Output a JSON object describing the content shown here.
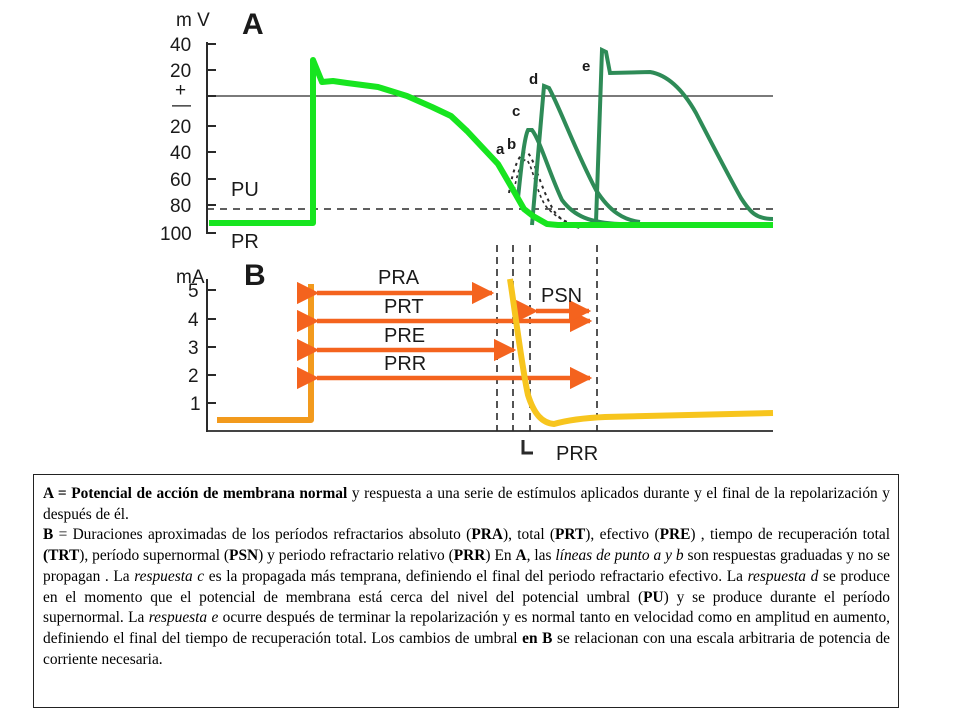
{
  "colors": {
    "green": "#17e51f",
    "dark_green": "#2e8b57",
    "orange_arrow": "#f4631e",
    "orange_stim": "#f29a1d",
    "yellow": "#f7c51e",
    "ink": "#2a2a2a"
  },
  "chart_data": [
    {
      "type": "line",
      "panel": "A",
      "ylabel": "m V",
      "y_ticks": [
        "40",
        "20",
        "+",
        "—",
        "20",
        "40",
        "60",
        "80",
        "100"
      ],
      "labels": [
        "PU",
        "PR"
      ],
      "curve_labels": [
        "a",
        "b",
        "c",
        "d",
        "e"
      ]
    },
    {
      "type": "line",
      "panel": "B",
      "ylabel": "mA",
      "y_ticks": [
        "5",
        "4",
        "3",
        "2",
        "1"
      ],
      "intervals": [
        "PRA",
        "PRT",
        "PRE",
        "PRR",
        "PSN"
      ],
      "bottom_label": "PRR"
    }
  ],
  "caption": {
    "p1": {
      "bold": "A = Potencial de acción de membrana normal",
      "text": " y respuesta a una serie de estímulos aplicados durante y el final de la repolarización y después de él."
    },
    "p2": [
      {
        "t": "B",
        "s": "b"
      },
      {
        "t": "  = Duraciones aproximadas de los períodos refractarios absoluto (",
        "s": ""
      },
      {
        "t": "PRA",
        "s": "b"
      },
      {
        "t": "),  total (",
        "s": ""
      },
      {
        "t": "PRT",
        "s": "b"
      },
      {
        "t": "),  efectivo (",
        "s": ""
      },
      {
        "t": "PRE",
        "s": "b"
      },
      {
        "t": ") ,  tiempo de recuperación total ",
        "s": ""
      },
      {
        "t": "(TRT",
        "s": "b"
      },
      {
        "t": "), período supernormal (",
        "s": ""
      },
      {
        "t": "PSN",
        "s": "b"
      },
      {
        "t": ") y periodo refractario relativo (",
        "s": ""
      },
      {
        "t": "PRR",
        "s": "b"
      },
      {
        "t": ") En ",
        "s": ""
      },
      {
        "t": "A",
        "s": "b"
      },
      {
        "t": ", las ",
        "s": ""
      },
      {
        "t": "líneas de punto a y b",
        "s": "i"
      },
      {
        "t": " son respuestas graduadas y no se propagan . La ",
        "s": ""
      },
      {
        "t": "respuesta c",
        "s": "i"
      },
      {
        "t": " es la propagada más temprana, definiendo el final del periodo refractario efectivo. La ",
        "s": ""
      },
      {
        "t": "respuesta d",
        "s": "i"
      },
      {
        "t": " se produce en el momento que el potencial de membrana está cerca del nivel del potencial umbral (",
        "s": ""
      },
      {
        "t": "PU",
        "s": "b"
      },
      {
        "t": ") y se produce durante el período supernormal. La ",
        "s": ""
      },
      {
        "t": "respuesta e",
        "s": "i"
      },
      {
        "t": " ocurre después de terminar la repolarización y es normal tanto en velocidad como en amplitud en aumento, definiendo el final del tiempo de recuperación total. Los cambios de umbral ",
        "s": ""
      },
      {
        "t": "en B",
        "s": "b"
      },
      {
        "t": " se relacionan con una escala arbitraria de potencia de corriente necesaria.",
        "s": ""
      }
    ]
  }
}
